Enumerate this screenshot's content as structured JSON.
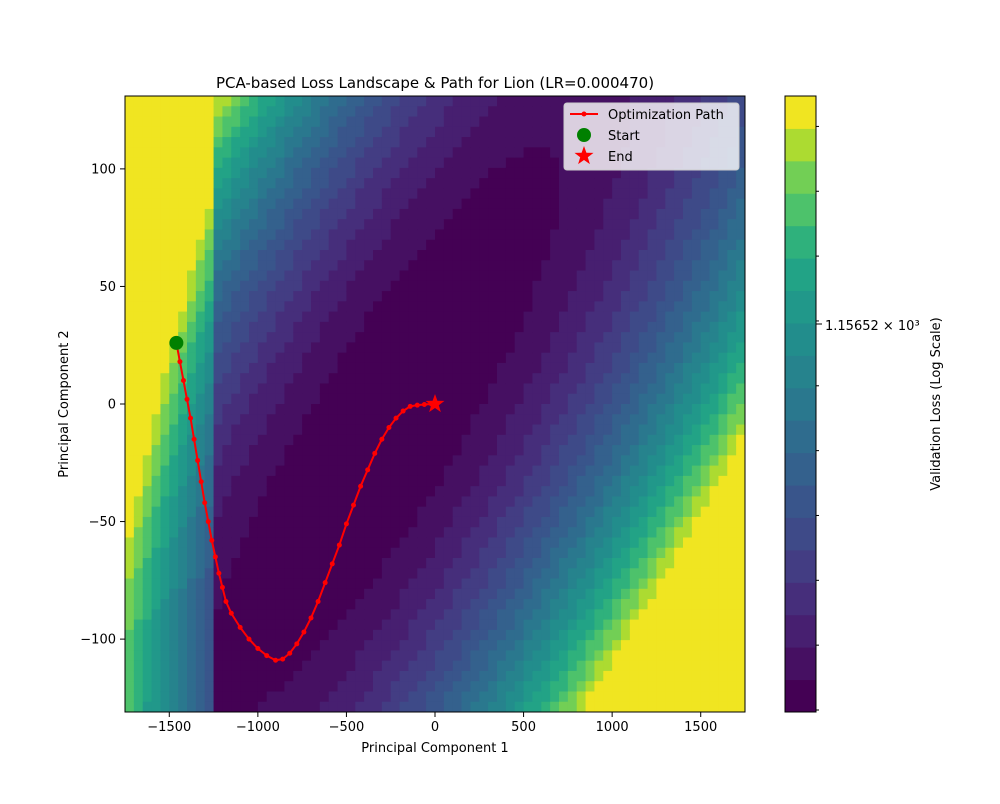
{
  "chart_data": {
    "type": "contour",
    "title": "PCA-based Loss Landscape & Path for Lion (LR=0.000470)",
    "xlabel": "Principal Component 1",
    "ylabel": "Principal Component 2",
    "xlim": [
      -1750,
      1750
    ],
    "ylim": [
      -131,
      131
    ],
    "x_ticks": [
      -1500,
      -1000,
      -500,
      0,
      500,
      1000,
      1500
    ],
    "y_ticks": [
      -100,
      -50,
      0,
      50,
      100
    ],
    "colormap": "viridis",
    "contour_levels": 19,
    "colorbar": {
      "label": "Validation Loss (Log Scale)",
      "scale": "log",
      "tick_label": "1.15652 × 10³",
      "tick_value": 1156.52
    },
    "legend": {
      "placement": "top-right",
      "entries": [
        "Optimization Path",
        "Start",
        "End"
      ]
    },
    "series": [
      {
        "name": "Optimization Path",
        "color": "#ff0000",
        "x": [
          -1460,
          -1440,
          -1420,
          -1400,
          -1380,
          -1360,
          -1340,
          -1320,
          -1300,
          -1280,
          -1260,
          -1240,
          -1220,
          -1200,
          -1180,
          -1150,
          -1100,
          -1050,
          -1000,
          -950,
          -900,
          -860,
          -820,
          -780,
          -740,
          -700,
          -660,
          -620,
          -580,
          -540,
          -500,
          -460,
          -420,
          -380,
          -340,
          -300,
          -260,
          -220,
          -180,
          -140,
          -100,
          -60,
          -20,
          0
        ],
        "y": [
          26,
          18,
          10,
          2,
          -6,
          -15,
          -24,
          -33,
          -42,
          -50,
          -58,
          -65,
          -72,
          -78,
          -84,
          -89,
          -95,
          -100,
          -104,
          -107,
          -109,
          -108.5,
          -106,
          -102,
          -97,
          -91,
          -84,
          -76,
          -68,
          -60,
          -51,
          -43,
          -35,
          -28,
          -21,
          -15,
          -10,
          -6,
          -3,
          -1,
          -0.5,
          -0.2,
          0,
          0
        ]
      }
    ],
    "start_point": {
      "label": "Start",
      "x": -1460,
      "y": 26,
      "color": "#008000"
    },
    "end_point": {
      "label": "End",
      "x": 0,
      "y": 0,
      "color": "#ff0000"
    }
  }
}
